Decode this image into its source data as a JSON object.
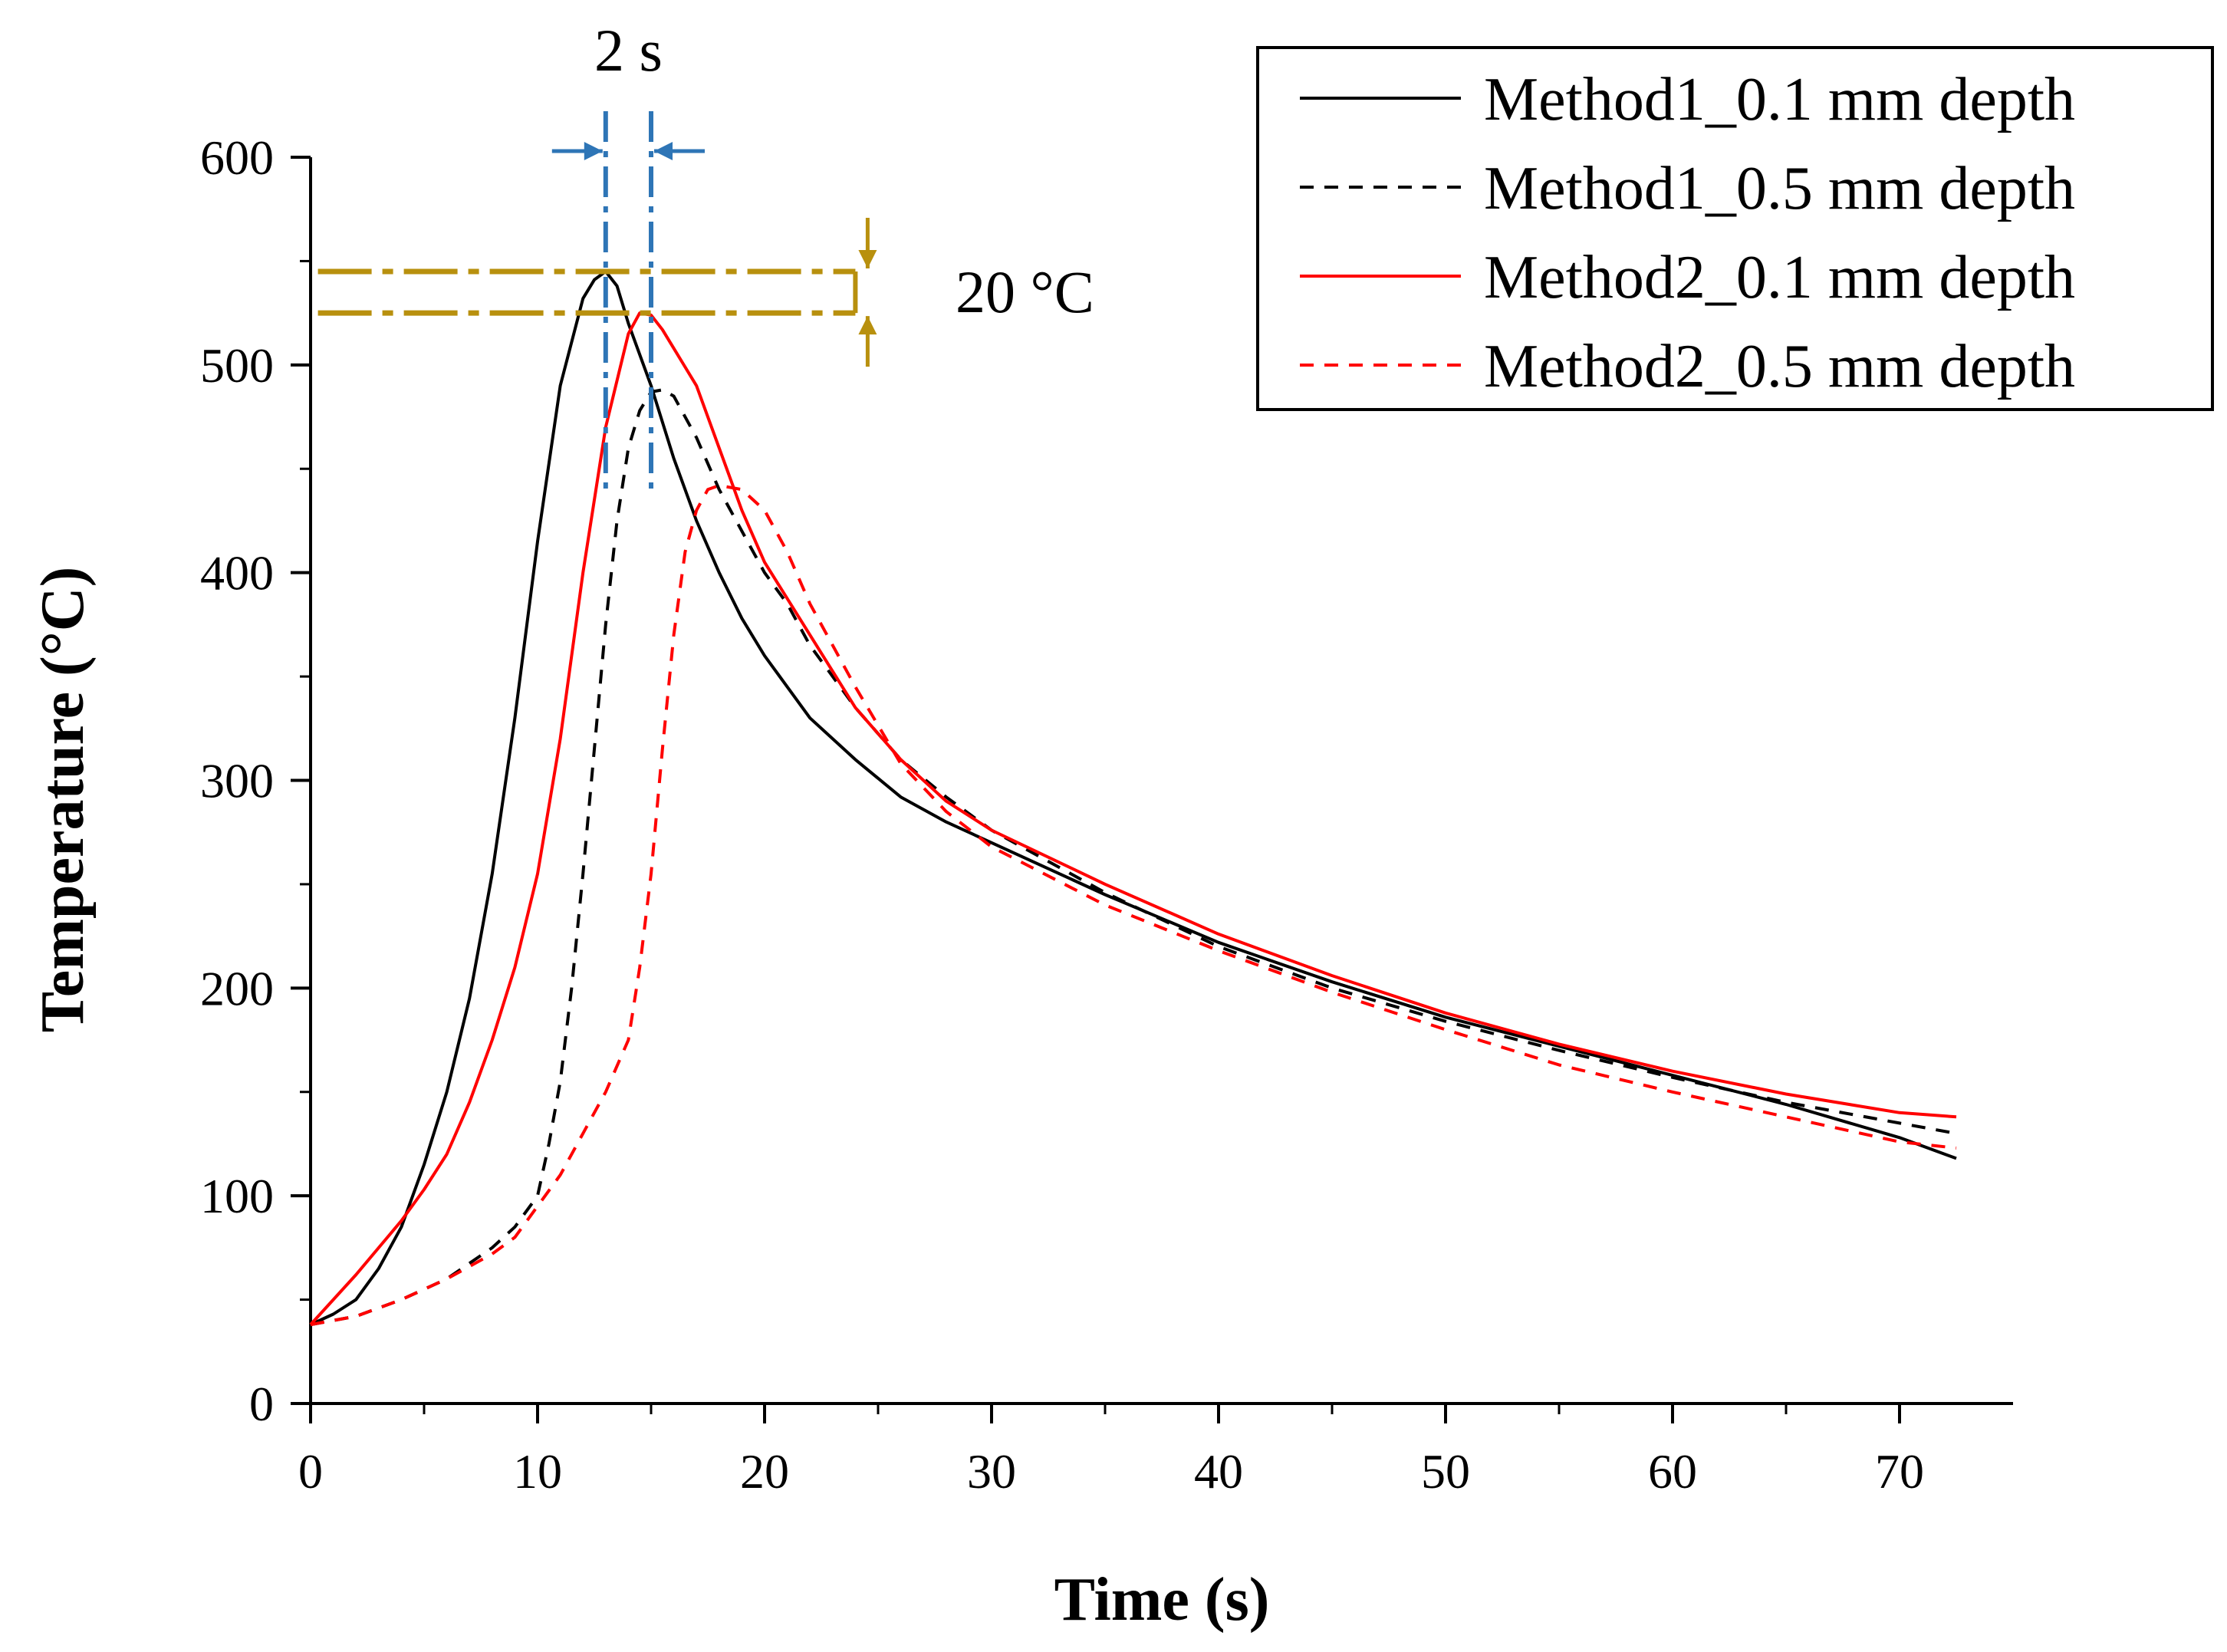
{
  "chart_data": {
    "type": "line",
    "title": "",
    "xlabel": "Time (s)",
    "ylabel": "Temperature (°C)",
    "xlim": [
      0,
      75
    ],
    "ylim": [
      0,
      600
    ],
    "xticks": [
      0,
      10,
      20,
      30,
      40,
      50,
      60,
      70
    ],
    "yticks": [
      0,
      100,
      200,
      300,
      400,
      500,
      600
    ],
    "xtick_labels": [
      "0",
      "10",
      "20",
      "30",
      "40",
      "50",
      "60",
      "70"
    ],
    "ytick_labels": [
      "0",
      "100",
      "200",
      "300",
      "400",
      "500",
      "600"
    ],
    "grid": false,
    "legend_position": "top-right",
    "series": [
      {
        "name": "Method1_0.1 mm depth",
        "color": "#000000",
        "dash": "solid",
        "x": [
          0,
          1,
          2,
          3,
          4,
          5,
          6,
          7,
          8,
          9,
          10,
          11,
          12,
          12.5,
          13,
          13.5,
          14,
          15,
          16,
          17,
          18,
          19,
          20,
          22,
          24,
          26,
          28,
          30,
          35,
          40,
          45,
          50,
          55,
          60,
          65,
          70,
          72.5
        ],
        "y": [
          38,
          43,
          50,
          65,
          85,
          115,
          150,
          195,
          255,
          330,
          415,
          490,
          532,
          541,
          545,
          538,
          520,
          490,
          455,
          425,
          400,
          378,
          360,
          330,
          310,
          292,
          280,
          270,
          245,
          222,
          203,
          186,
          172,
          158,
          144,
          128,
          118
        ]
      },
      {
        "name": "Method1_0.5 mm depth",
        "color": "#000000",
        "dash": "dashed",
        "x": [
          0,
          2,
          4,
          6,
          8,
          9,
          10,
          10.5,
          11,
          11.5,
          12,
          12.5,
          13,
          13.5,
          14,
          14.5,
          15,
          15.5,
          16,
          17,
          18,
          19,
          20,
          21,
          22,
          24,
          26,
          28,
          30,
          35,
          40,
          45,
          50,
          55,
          60,
          65,
          70,
          72.5
        ],
        "y": [
          38,
          42,
          50,
          60,
          75,
          85,
          100,
          125,
          155,
          200,
          255,
          315,
          375,
          425,
          460,
          478,
          487,
          488,
          485,
          465,
          440,
          420,
          400,
          385,
          365,
          335,
          310,
          292,
          276,
          246,
          220,
          200,
          184,
          170,
          157,
          145,
          135,
          130
        ]
      },
      {
        "name": "Method2_0.1 mm depth",
        "color": "#ff0000",
        "dash": "solid",
        "x": [
          0,
          1,
          2,
          3,
          4,
          5,
          6,
          7,
          8,
          9,
          10,
          11,
          12,
          13,
          14,
          14.5,
          15,
          15.5,
          16,
          17,
          18,
          19,
          20,
          22,
          24,
          26,
          28,
          30,
          35,
          40,
          45,
          50,
          55,
          60,
          65,
          70,
          72.5
        ],
        "y": [
          38,
          50,
          62,
          75,
          88,
          103,
          120,
          145,
          175,
          210,
          255,
          320,
          400,
          470,
          515,
          525,
          524,
          517,
          508,
          490,
          460,
          430,
          405,
          370,
          335,
          310,
          290,
          276,
          250,
          226,
          206,
          188,
          173,
          160,
          149,
          140,
          138
        ]
      },
      {
        "name": "Method2_0.5 mm depth",
        "color": "#ff0000",
        "dash": "dashed",
        "x": [
          0,
          2,
          4,
          6,
          8,
          9,
          10,
          11,
          12,
          13,
          14,
          14.5,
          15,
          15.5,
          16,
          16.5,
          17,
          17.5,
          18,
          19,
          20,
          21,
          22,
          24,
          26,
          28,
          30,
          35,
          40,
          45,
          50,
          55,
          60,
          65,
          70,
          72.5
        ],
        "y": [
          38,
          42,
          50,
          60,
          72,
          80,
          95,
          110,
          130,
          150,
          175,
          210,
          255,
          315,
          370,
          410,
          430,
          440,
          442,
          440,
          430,
          410,
          385,
          345,
          308,
          285,
          268,
          240,
          218,
          198,
          180,
          163,
          150,
          138,
          126,
          123
        ]
      }
    ],
    "annotations": [
      {
        "label": "2 s",
        "color": "#2e75b6",
        "type": "horizontal-span",
        "x_range": [
          13,
          15
        ],
        "y_range": [
          440,
          600
        ]
      },
      {
        "label": "20 °C",
        "color": "#b8900e",
        "type": "vertical-span",
        "x_range": [
          1,
          24
        ],
        "y_range": [
          525,
          545
        ]
      }
    ]
  }
}
